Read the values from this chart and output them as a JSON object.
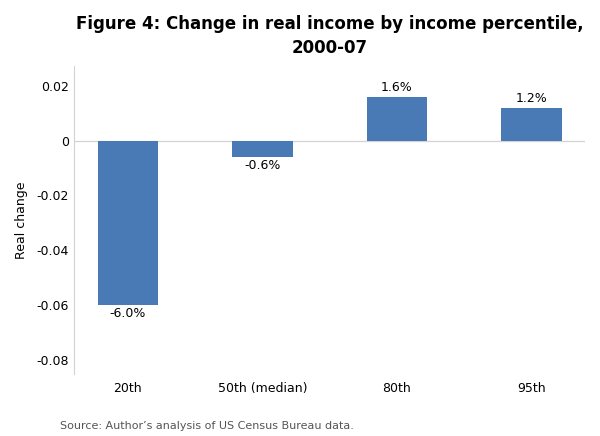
{
  "title": "Figure 4: Change in real income by income percentile,\n2000-07",
  "categories": [
    "20th",
    "50th (median)",
    "80th",
    "95th"
  ],
  "values": [
    -0.06,
    -0.006,
    0.016,
    0.012
  ],
  "labels": [
    "-6.0%",
    "-0.6%",
    "1.6%",
    "1.2%"
  ],
  "bar_color": "#4a7ab5",
  "ylabel": "Real change",
  "ylim": [
    -0.085,
    0.027
  ],
  "yticks": [
    -0.08,
    -0.06,
    -0.04,
    -0.02,
    0,
    0.02
  ],
  "ytick_labels": [
    "-0.08",
    "-0.06",
    "-0.04",
    "-0.02",
    "0",
    "0.02"
  ],
  "source_text": "Source: Author’s analysis of US Census Bureau data.",
  "background_color": "#ffffff",
  "title_fontsize": 12,
  "label_fontsize": 9,
  "tick_fontsize": 9,
  "ylabel_fontsize": 9,
  "source_fontsize": 8,
  "bar_width": 0.45
}
